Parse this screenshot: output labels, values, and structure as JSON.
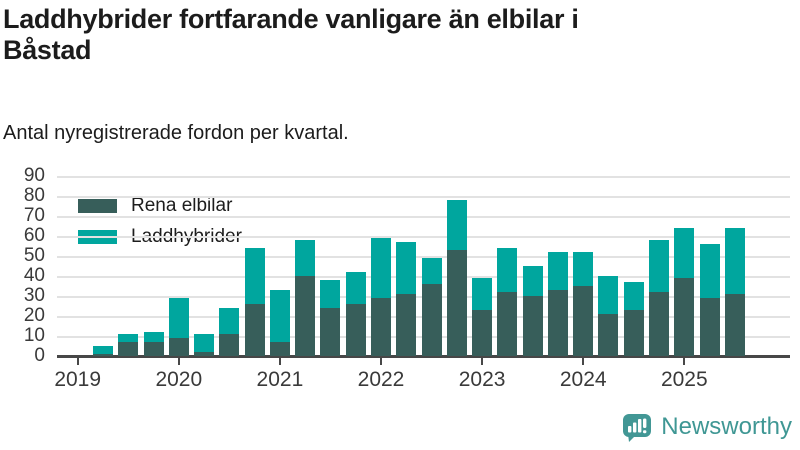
{
  "header": {
    "title": "Laddhybrider fortfarande vanligare än elbilar i Båstad",
    "title_line1": "Laddhybrider fortfarande vanligare än elbilar i",
    "title_line2": "Båstad",
    "subtitle": "Antal nyregistrerade fordon per kvartal."
  },
  "legend": {
    "items": [
      {
        "label": "Rena elbilar",
        "color": "#375e5a"
      },
      {
        "label": "Laddhybrider",
        "color": "#00a69e"
      }
    ]
  },
  "footer": {
    "brand": "Newsworthy",
    "brand_color": "#3f9794"
  },
  "colors": {
    "elbilar": "#375e5a",
    "laddhybrider": "#00a69e",
    "grid": "#e2e2e2",
    "axis": "#474747",
    "text": "#1d1d1d"
  },
  "chart_data": {
    "type": "bar",
    "stacked": true,
    "title": "Laddhybrider fortfarande vanligare än elbilar i Båstad",
    "subtitle": "Antal nyregistrerade fordon per kvartal.",
    "xlabel": "",
    "ylabel": "",
    "ylim": [
      0,
      90
    ],
    "yticks": [
      0,
      10,
      20,
      30,
      40,
      50,
      60,
      70,
      80,
      90
    ],
    "grid": true,
    "legend_position": "top-left",
    "categories": [
      "2019 Q1",
      "2019 Q2",
      "2019 Q3",
      "2019 Q4",
      "2020 Q1",
      "2020 Q2",
      "2020 Q3",
      "2020 Q4",
      "2021 Q1",
      "2021 Q2",
      "2021 Q3",
      "2021 Q4",
      "2022 Q1",
      "2022 Q2",
      "2022 Q3",
      "2022 Q4",
      "2023 Q1",
      "2023 Q2",
      "2023 Q3",
      "2023 Q4",
      "2024 Q1",
      "2024 Q2",
      "2024 Q3",
      "2024 Q4",
      "2025 Q1",
      "2025 Q2",
      "2025 Q3"
    ],
    "series": [
      {
        "name": "Rena elbilar",
        "color": "#375e5a",
        "values": [
          0,
          1,
          7,
          7,
          9,
          2,
          11,
          26,
          7,
          40,
          24,
          26,
          29,
          31,
          36,
          53,
          23,
          32,
          30,
          33,
          35,
          21,
          23,
          32,
          39,
          29,
          31
        ]
      },
      {
        "name": "Laddhybrider",
        "color": "#00a69e",
        "values": [
          0,
          4,
          4,
          5,
          20,
          9,
          13,
          28,
          26,
          18,
          14,
          16,
          30,
          26,
          13,
          25,
          16,
          22,
          15,
          19,
          17,
          19,
          14,
          26,
          25,
          27,
          33
        ]
      }
    ],
    "totals": [
      0,
      5,
      11,
      12,
      29,
      11,
      24,
      54,
      33,
      58,
      38,
      42,
      59,
      57,
      49,
      78,
      39,
      54,
      45,
      52,
      52,
      40,
      37,
      58,
      64,
      56,
      64
    ],
    "x_year_ticks": [
      {
        "label": "2019",
        "index": 0
      },
      {
        "label": "2020",
        "index": 4
      },
      {
        "label": "2021",
        "index": 8
      },
      {
        "label": "2022",
        "index": 12
      },
      {
        "label": "2023",
        "index": 16
      },
      {
        "label": "2024",
        "index": 20
      },
      {
        "label": "2025",
        "index": 24
      }
    ]
  }
}
